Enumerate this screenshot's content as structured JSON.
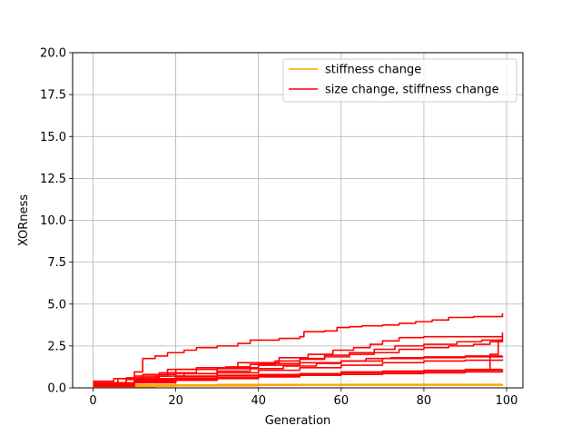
{
  "chart_data": {
    "type": "line",
    "title": "",
    "xlabel": "Generation",
    "ylabel": "XORness",
    "xlim": [
      -4.95,
      103.95
    ],
    "ylim": [
      0,
      20
    ],
    "xticks": [
      0,
      20,
      40,
      60,
      80,
      100
    ],
    "yticks": [
      0.0,
      2.5,
      5.0,
      7.5,
      10.0,
      12.5,
      15.0,
      17.5,
      20.0
    ],
    "xtick_labels": [
      "0",
      "20",
      "40",
      "60",
      "80",
      "100"
    ],
    "ytick_labels": [
      "0.0",
      "2.5",
      "5.0",
      "7.5",
      "10.0",
      "12.5",
      "15.0",
      "17.5",
      "20.0"
    ],
    "grid": true,
    "legend_position": "top-right",
    "legend": [
      {
        "label": "stiffness change",
        "color": "#ffa500"
      },
      {
        "label": "size change, stiffness change",
        "color": "#ff0000"
      }
    ],
    "series": [
      {
        "group": "stiffness change",
        "color": "#ffa500",
        "points": [
          [
            0,
            0.15
          ],
          [
            10,
            0.17
          ],
          [
            30,
            0.2
          ],
          [
            60,
            0.21
          ],
          [
            99,
            0.22
          ]
        ]
      },
      {
        "group": "stiffness change",
        "color": "#ffa500",
        "points": [
          [
            0,
            0.1
          ],
          [
            20,
            0.15
          ],
          [
            50,
            0.18
          ],
          [
            99,
            0.2
          ]
        ]
      },
      {
        "group": "stiffness change",
        "color": "#ffa500",
        "points": [
          [
            0,
            0.05
          ],
          [
            15,
            0.12
          ],
          [
            40,
            0.16
          ],
          [
            99,
            0.18
          ]
        ]
      },
      {
        "group": "size change, stiffness change",
        "color": "#ff0000",
        "points": [
          [
            0,
            0.4
          ],
          [
            5,
            0.55
          ],
          [
            10,
            0.95
          ],
          [
            12,
            1.75
          ],
          [
            15,
            1.9
          ],
          [
            18,
            2.1
          ],
          [
            22,
            2.25
          ],
          [
            25,
            2.4
          ],
          [
            30,
            2.5
          ],
          [
            35,
            2.65
          ],
          [
            38,
            2.85
          ],
          [
            45,
            2.95
          ],
          [
            50,
            3.05
          ],
          [
            51,
            3.35
          ],
          [
            56,
            3.4
          ],
          [
            59,
            3.6
          ],
          [
            62,
            3.65
          ],
          [
            65,
            3.7
          ],
          [
            70,
            3.75
          ],
          [
            74,
            3.85
          ],
          [
            78,
            3.95
          ],
          [
            82,
            4.05
          ],
          [
            86,
            4.2
          ],
          [
            92,
            4.25
          ],
          [
            98,
            4.25
          ],
          [
            99,
            4.45
          ]
        ]
      },
      {
        "group": "size change, stiffness change",
        "color": "#ff0000",
        "points": [
          [
            0,
            0.3
          ],
          [
            8,
            0.6
          ],
          [
            16,
            0.9
          ],
          [
            25,
            1.2
          ],
          [
            35,
            1.5
          ],
          [
            45,
            1.8
          ],
          [
            52,
            2.0
          ],
          [
            58,
            2.25
          ],
          [
            63,
            2.4
          ],
          [
            67,
            2.6
          ],
          [
            70,
            2.8
          ],
          [
            74,
            3.0
          ],
          [
            80,
            3.05
          ],
          [
            90,
            3.05
          ],
          [
            99,
            3.1
          ]
        ]
      },
      {
        "group": "size change, stiffness change",
        "color": "#ff0000",
        "points": [
          [
            0,
            0.25
          ],
          [
            10,
            0.55
          ],
          [
            20,
            0.85
          ],
          [
            30,
            1.15
          ],
          [
            40,
            1.45
          ],
          [
            50,
            1.7
          ],
          [
            56,
            1.95
          ],
          [
            62,
            2.1
          ],
          [
            68,
            2.3
          ],
          [
            73,
            2.5
          ],
          [
            80,
            2.6
          ],
          [
            88,
            2.75
          ],
          [
            94,
            2.85
          ],
          [
            99,
            2.95
          ]
        ]
      },
      {
        "group": "size change, stiffness change",
        "color": "#ff0000",
        "points": [
          [
            0,
            0.3
          ],
          [
            10,
            0.7
          ],
          [
            18,
            1.1
          ],
          [
            25,
            1.2
          ],
          [
            32,
            1.25
          ],
          [
            38,
            1.4
          ],
          [
            44,
            1.6
          ],
          [
            50,
            1.75
          ],
          [
            56,
            1.85
          ],
          [
            62,
            2.0
          ],
          [
            68,
            2.1
          ],
          [
            74,
            2.3
          ],
          [
            80,
            2.4
          ],
          [
            86,
            2.5
          ],
          [
            92,
            2.6
          ],
          [
            96,
            2.75
          ],
          [
            99,
            2.8
          ]
        ]
      },
      {
        "group": "size change, stiffness change",
        "color": "#ff0000",
        "points": [
          [
            0,
            0.2
          ],
          [
            8,
            0.5
          ],
          [
            15,
            0.7
          ],
          [
            22,
            0.85
          ],
          [
            30,
            1.0
          ],
          [
            38,
            1.15
          ],
          [
            46,
            1.3
          ],
          [
            54,
            1.45
          ],
          [
            60,
            1.6
          ],
          [
            66,
            1.75
          ],
          [
            72,
            1.8
          ],
          [
            80,
            1.85
          ],
          [
            90,
            1.9
          ],
          [
            99,
            1.9
          ]
        ]
      },
      {
        "group": "size change, stiffness change",
        "color": "#ff0000",
        "points": [
          [
            0,
            0.2
          ],
          [
            10,
            0.45
          ],
          [
            20,
            0.7
          ],
          [
            30,
            0.9
          ],
          [
            40,
            1.05
          ],
          [
            50,
            1.2
          ],
          [
            60,
            1.35
          ],
          [
            70,
            1.5
          ],
          [
            80,
            1.6
          ],
          [
            90,
            1.65
          ],
          [
            99,
            1.7
          ]
        ]
      },
      {
        "group": "size change, stiffness change",
        "color": "#ff0000",
        "points": [
          [
            0,
            0.3
          ],
          [
            6,
            0.55
          ],
          [
            12,
            0.8
          ],
          [
            20,
            1.1
          ],
          [
            30,
            1.2
          ],
          [
            40,
            1.35
          ],
          [
            50,
            1.5
          ],
          [
            60,
            1.6
          ],
          [
            70,
            1.75
          ],
          [
            80,
            1.8
          ],
          [
            90,
            1.85
          ],
          [
            99,
            1.9
          ]
        ]
      },
      {
        "group": "size change, stiffness change",
        "color": "#ff0000",
        "points": [
          [
            0,
            0.25
          ],
          [
            10,
            0.5
          ],
          [
            20,
            0.65
          ],
          [
            30,
            0.75
          ],
          [
            40,
            0.8
          ],
          [
            50,
            0.85
          ],
          [
            60,
            0.95
          ],
          [
            70,
            1.0
          ],
          [
            80,
            1.05
          ],
          [
            90,
            1.1
          ],
          [
            99,
            1.1
          ]
        ]
      },
      {
        "group": "size change, stiffness change",
        "color": "#ff0000",
        "points": [
          [
            0,
            0.15
          ],
          [
            10,
            0.35
          ],
          [
            20,
            0.5
          ],
          [
            30,
            0.6
          ],
          [
            40,
            0.7
          ],
          [
            50,
            0.8
          ],
          [
            60,
            0.9
          ],
          [
            70,
            0.95
          ],
          [
            80,
            1.0
          ],
          [
            90,
            1.05
          ],
          [
            99,
            1.1
          ]
        ]
      },
      {
        "group": "size change, stiffness change",
        "color": "#ff0000",
        "points": [
          [
            0,
            0.2
          ],
          [
            10,
            0.4
          ],
          [
            20,
            0.55
          ],
          [
            30,
            0.65
          ],
          [
            40,
            0.75
          ],
          [
            50,
            0.85
          ],
          [
            60,
            0.9
          ],
          [
            70,
            0.95
          ],
          [
            80,
            1.0
          ],
          [
            90,
            1.05
          ],
          [
            93,
            1.05
          ],
          [
            96,
            2.0
          ],
          [
            98,
            2.8
          ],
          [
            99,
            3.3
          ]
        ]
      },
      {
        "group": "size change, stiffness change",
        "color": "#ff0000",
        "points": [
          [
            0,
            0.1
          ],
          [
            10,
            0.3
          ],
          [
            20,
            0.45
          ],
          [
            30,
            0.55
          ],
          [
            40,
            0.65
          ],
          [
            50,
            0.75
          ],
          [
            60,
            0.8
          ],
          [
            70,
            0.85
          ],
          [
            80,
            0.9
          ],
          [
            90,
            0.95
          ],
          [
            99,
            1.0
          ]
        ]
      }
    ]
  }
}
